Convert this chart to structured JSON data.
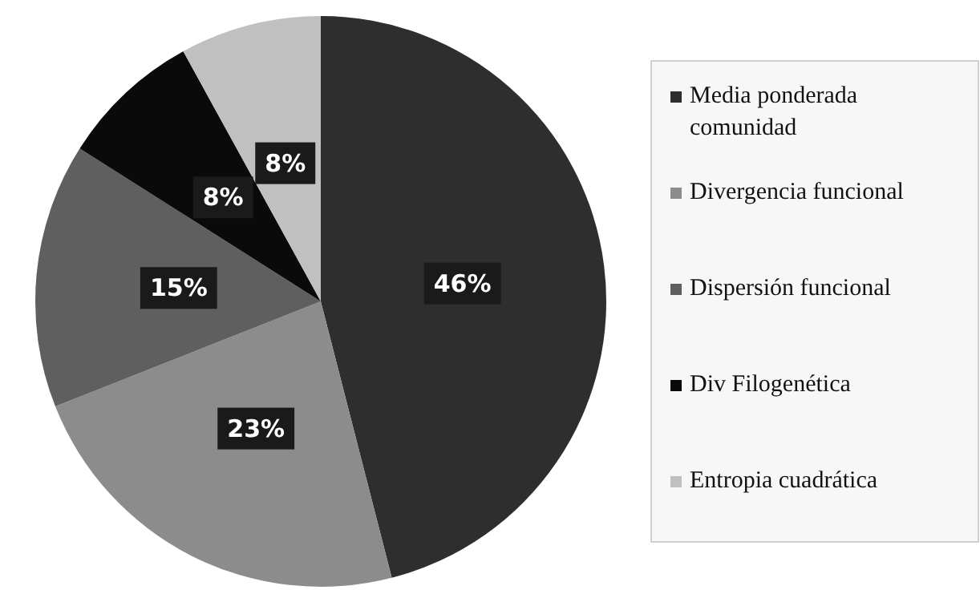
{
  "chart_data": {
    "type": "pie",
    "categories": [
      "Media ponderada comunidad",
      "Divergencia funcional",
      "Dispersión funcional",
      "Div Filogenética",
      "Entropia cuadrática"
    ],
    "values": [
      46,
      23,
      15,
      8,
      8
    ],
    "colors": [
      "#2e2e2e",
      "#8c8c8c",
      "#5f5f5f",
      "#0a0a0a",
      "#c0c0c0"
    ],
    "value_labels": [
      "46%",
      "23%",
      "15%",
      "8%",
      "8%"
    ],
    "legend": "right"
  }
}
